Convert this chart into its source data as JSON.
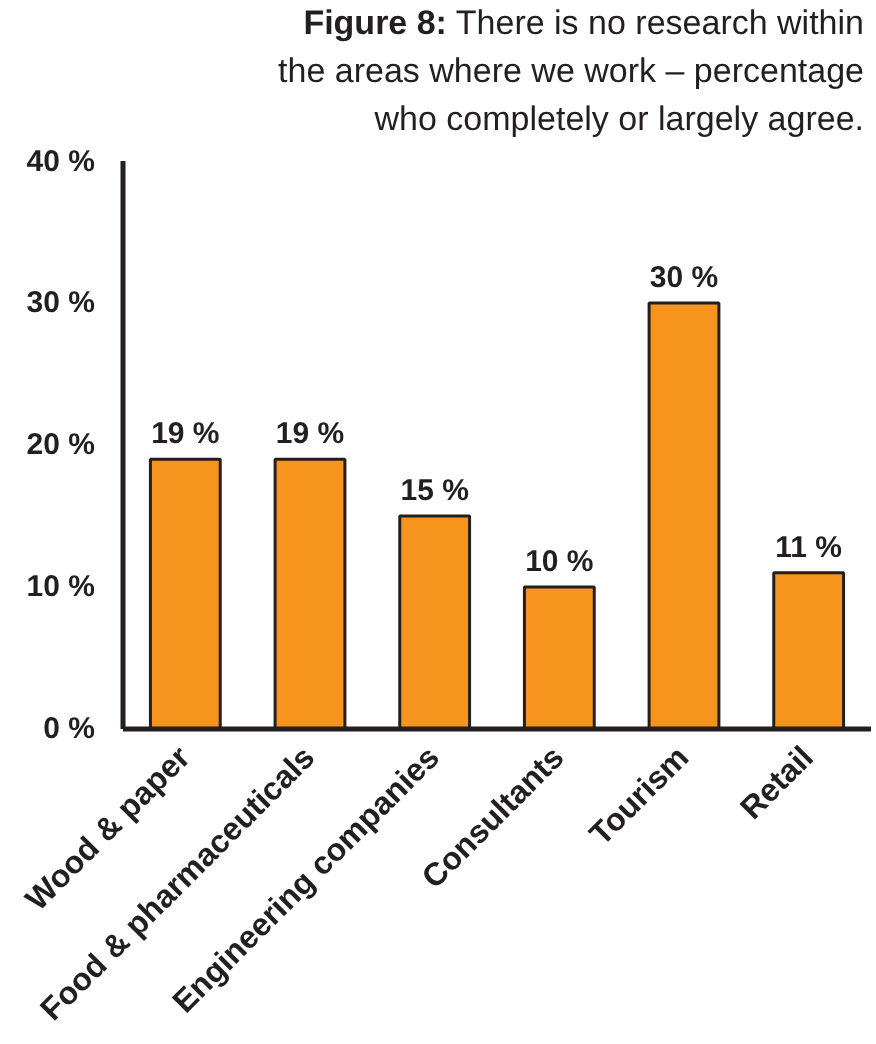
{
  "chart_data": {
    "type": "bar",
    "title": "Figure 8:",
    "subtitle": "There is no research within the areas where we work – percentage who completely or largely agree.",
    "categories": [
      "Wood & paper",
      "Food & pharmaceuticals",
      "Engineering companies",
      "Consultants",
      "Tourism",
      "Retail"
    ],
    "values": [
      19,
      19,
      15,
      10,
      30,
      11
    ],
    "color": "#f7941d",
    "value_labels": [
      "19 %",
      "19 %",
      "15 %",
      "10 %",
      "30 %",
      "11 %"
    ],
    "ylim": [
      0,
      40
    ],
    "yticks": [
      {
        "value": 0,
        "label": "0 %"
      },
      {
        "value": 10,
        "label": "10 %"
      },
      {
        "value": 20,
        "label": "20 %"
      },
      {
        "value": 30,
        "label": "30 %"
      },
      {
        "value": 40,
        "label": "40 %"
      }
    ],
    "grid": false
  }
}
